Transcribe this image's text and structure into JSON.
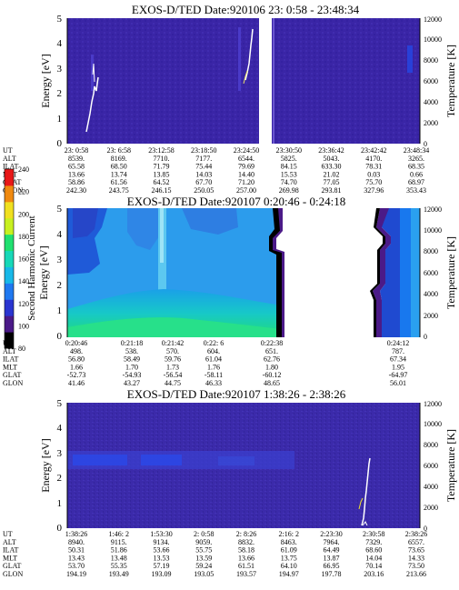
{
  "chart_data": [
    {
      "type": "heatmap",
      "title": "EXOS-D/TED   Date:920106  23: 0:58 - 23:48:34",
      "ylabel": "Energy [eV]",
      "ylabel2": "Temperature [K]",
      "ylim": [
        0,
        5
      ],
      "ylim2": [
        0,
        12000
      ],
      "yticks": [
        "0",
        "1",
        "2",
        "3",
        "4",
        "5"
      ],
      "yticks2": [
        "0",
        "2000",
        "4000",
        "6000",
        "8000",
        "10000",
        "12000"
      ],
      "background_color": "#3a25a6",
      "table": {
        "rows": [
          {
            "label": "UT",
            "values": [
              "23: 0:58",
              "23: 6:58",
              "23:12:58",
              "23:18:50",
              "23:24:50",
              "23:30:50",
              "23:36:42",
              "23:42:42",
              "23:48:34"
            ]
          },
          {
            "label": "ALT",
            "values": [
              "8539.",
              "8169.",
              "7710.",
              "7177.",
              "6544.",
              "5825.",
              "5043.",
              "4170.",
              "3265."
            ]
          },
          {
            "label": "ILAT",
            "values": [
              "65.58",
              "68.50",
              "71.79",
              "75.44",
              "79.69",
              "84.15",
              "633.30",
              "78.31",
              "68.35"
            ]
          },
          {
            "label": "MLT",
            "values": [
              "13.66",
              "13.74",
              "13.85",
              "14.03",
              "14.40",
              "15.53",
              "21.02",
              "0.03",
              "0.66"
            ]
          },
          {
            "label": "GLAT",
            "values": [
              "58.86",
              "61.56",
              "64.52",
              "67.70",
              "71.20",
              "74.70",
              "77.05",
              "75.70",
              "68.97"
            ]
          },
          {
            "label": "GLON",
            "values": [
              "242.30",
              "243.75",
              "246.15",
              "250.05",
              "257.00",
              "269.98",
              "293.81",
              "327.96",
              "353.43"
            ]
          }
        ]
      }
    },
    {
      "type": "heatmap",
      "title": "EXOS-D/TED   Date:920107  0:20:46 - 0:24:18",
      "ylabel": "Energy [eV]",
      "ylabel2": "Temperature [K]",
      "ylim": [
        0,
        5
      ],
      "ylim2": [
        0,
        12000
      ],
      "yticks": [
        "0",
        "1",
        "2",
        "3",
        "4",
        "5"
      ],
      "yticks2": [
        "0",
        "2000",
        "4000",
        "6000",
        "8000",
        "10000",
        "12000"
      ],
      "colorbar": {
        "label": "Second Harmonic Current",
        "range": [
          80,
          240
        ],
        "ticks": [
          "80",
          "100",
          "120",
          "140",
          "160",
          "180",
          "200",
          "220",
          "240"
        ],
        "colors": [
          "#000000",
          "#4b1a88",
          "#2a35d0",
          "#1f78f0",
          "#18b8e8",
          "#17d8b8",
          "#20e070",
          "#c8f020",
          "#f0e020",
          "#f08a10",
          "#e81818"
        ]
      },
      "table": {
        "rows": [
          {
            "label": "UT",
            "values": [
              "0:20:46",
              "0:21:18",
              "0:21:42",
              "0:22: 6",
              "0:22:38",
              "0:24:12"
            ]
          },
          {
            "label": "ALT",
            "values": [
              "498.",
              "538.",
              "570.",
              "604.",
              "651.",
              "787."
            ]
          },
          {
            "label": "ILAT",
            "values": [
              "56.80",
              "58.49",
              "59.76",
              "61.04",
              "62.76",
              "67.34"
            ]
          },
          {
            "label": "MLT",
            "values": [
              "1.66",
              "1.70",
              "1.73",
              "1.76",
              "1.80",
              "1.95"
            ]
          },
          {
            "label": "GLAT",
            "values": [
              "-52.73",
              "-54.93",
              "-56.54",
              "-58.11",
              "-60.12",
              "-64.97"
            ]
          },
          {
            "label": "GLON",
            "values": [
              "41.46",
              "43.27",
              "44.75",
              "46.33",
              "48.65",
              "56.01"
            ]
          }
        ]
      }
    },
    {
      "type": "heatmap",
      "title": "EXOS-D/TED   Date:920107  1:38:26 - 2:38:26",
      "ylabel": "Energy [eV]",
      "ylabel2": "Temperature [K]",
      "ylim": [
        0,
        5
      ],
      "ylim2": [
        0,
        12000
      ],
      "yticks": [
        "0",
        "1",
        "2",
        "3",
        "4",
        "5"
      ],
      "yticks2": [
        "0",
        "2000",
        "4000",
        "6000",
        "8000",
        "10000",
        "12000"
      ],
      "background_color": "#3a25a6",
      "table": {
        "rows": [
          {
            "label": "UT",
            "values": [
              "1:38:26",
              "1:46: 2",
              "1:53:30",
              "2: 0:58",
              "2: 8:26",
              "2:16: 2",
              "2:23:30",
              "2:30:58",
              "2:38:26"
            ]
          },
          {
            "label": "ALT",
            "values": [
              "8940.",
              "9115.",
              "9134.",
              "9059.",
              "8832.",
              "8463.",
              "7964.",
              "7329.",
              "6557."
            ]
          },
          {
            "label": "ILAT",
            "values": [
              "50.31",
              "51.86",
              "53.66",
              "55.75",
              "58.18",
              "61.09",
              "64.49",
              "68.60",
              "73.65"
            ]
          },
          {
            "label": "MLT",
            "values": [
              "13.43",
              "13.48",
              "13.53",
              "13.59",
              "13.66",
              "13.75",
              "13.87",
              "14.04",
              "14.33"
            ]
          },
          {
            "label": "GLAT",
            "values": [
              "53.70",
              "55.35",
              "57.19",
              "59.24",
              "61.51",
              "64.10",
              "66.95",
              "70.14",
              "73.50"
            ]
          },
          {
            "label": "GLON",
            "values": [
              "194.19",
              "193.49",
              "193.09",
              "193.05",
              "193.57",
              "194.97",
              "197.78",
              "203.16",
              "213.66"
            ]
          }
        ]
      }
    }
  ]
}
